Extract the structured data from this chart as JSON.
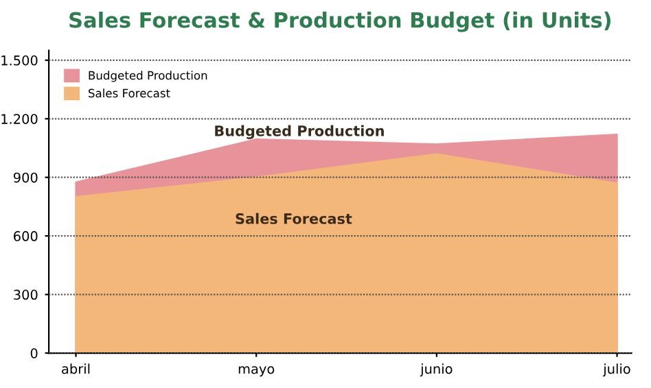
{
  "chart_data": {
    "type": "area",
    "title": "Sales Forecast & Production Budget (in Units)",
    "categories": [
      "abril",
      "mayo",
      "junio",
      "julio"
    ],
    "series": [
      {
        "name": "Budgeted Production",
        "color": "#e8939a",
        "values": [
          875,
          1095,
          1070,
          1120
        ]
      },
      {
        "name": "Sales Forecast",
        "color": "#f4b77a",
        "values": [
          800,
          900,
          1020,
          870
        ]
      }
    ],
    "ylim": [
      0,
      1550
    ],
    "yticks": [
      0,
      300,
      600,
      900,
      {
        "value": 1200,
        "label": "1.200"
      },
      {
        "value": 1500,
        "label": "1.500"
      }
    ],
    "grid": "y",
    "legend": "top left",
    "annotations": [
      "Budgeted Production",
      "Sales Forecast"
    ]
  }
}
